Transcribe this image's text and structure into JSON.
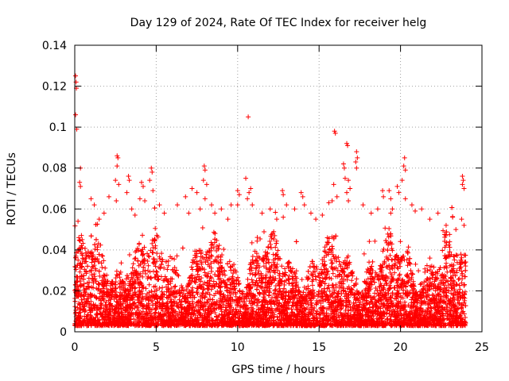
{
  "chart_data": {
    "type": "scatter",
    "title": "Day 129 of 2024, Rate Of TEC Index for receiver helg",
    "xlabel": "GPS time / hours",
    "ylabel": "ROTI / TECUs",
    "xlim": [
      0,
      25
    ],
    "ylim": [
      0,
      0.14
    ],
    "x_ticks": [
      0,
      5,
      10,
      15,
      20,
      25
    ],
    "y_ticks": [
      0,
      0.02,
      0.04,
      0.06,
      0.08,
      0.1,
      0.12,
      0.14
    ],
    "x_tick_labels": [
      "0",
      "5",
      "10",
      "15",
      "20",
      "25"
    ],
    "y_tick_labels": [
      "0",
      "0.02",
      "0.04",
      "0.06",
      "0.08",
      "0.1",
      "0.12",
      "0.14"
    ],
    "grid": true,
    "marker": "+",
    "color": "#ff0000",
    "series": [
      {
        "points": [
          [
            0.05,
            0.125
          ],
          [
            0.08,
            0.122
          ],
          [
            0.1,
            0.119
          ],
          [
            0.05,
            0.106
          ],
          [
            0.12,
            0.099
          ],
          [
            0.35,
            0.08
          ],
          [
            0.3,
            0.073
          ],
          [
            0.35,
            0.071
          ],
          [
            0.2,
            0.054
          ],
          [
            0.25,
            0.046
          ],
          [
            1.0,
            0.065
          ],
          [
            1.2,
            0.062
          ],
          [
            1.5,
            0.055
          ],
          [
            1.8,
            0.058
          ],
          [
            2.1,
            0.066
          ],
          [
            2.6,
            0.086
          ],
          [
            2.65,
            0.085
          ],
          [
            2.6,
            0.081
          ],
          [
            2.5,
            0.074
          ],
          [
            2.7,
            0.072
          ],
          [
            2.55,
            0.064
          ],
          [
            3.3,
            0.076
          ],
          [
            3.35,
            0.074
          ],
          [
            3.2,
            0.068
          ],
          [
            3.5,
            0.06
          ],
          [
            3.7,
            0.057
          ],
          [
            4.1,
            0.073
          ],
          [
            4.2,
            0.071
          ],
          [
            4.0,
            0.065
          ],
          [
            4.3,
            0.064
          ],
          [
            4.7,
            0.08
          ],
          [
            4.75,
            0.078
          ],
          [
            4.6,
            0.074
          ],
          [
            4.8,
            0.069
          ],
          [
            5.2,
            0.062
          ],
          [
            5.5,
            0.058
          ],
          [
            6.3,
            0.062
          ],
          [
            6.8,
            0.066
          ],
          [
            7.0,
            0.058
          ],
          [
            7.2,
            0.07
          ],
          [
            7.5,
            0.068
          ],
          [
            7.7,
            0.06
          ],
          [
            7.95,
            0.081
          ],
          [
            8.0,
            0.079
          ],
          [
            7.9,
            0.074
          ],
          [
            8.1,
            0.072
          ],
          [
            8.0,
            0.065
          ],
          [
            8.4,
            0.062
          ],
          [
            8.6,
            0.058
          ],
          [
            9.0,
            0.06
          ],
          [
            9.4,
            0.055
          ],
          [
            9.6,
            0.062
          ],
          [
            10.0,
            0.069
          ],
          [
            10.1,
            0.067
          ],
          [
            10.0,
            0.062
          ],
          [
            10.65,
            0.105
          ],
          [
            10.5,
            0.075
          ],
          [
            10.8,
            0.07
          ],
          [
            10.7,
            0.068
          ],
          [
            10.6,
            0.065
          ],
          [
            10.9,
            0.062
          ],
          [
            11.5,
            0.058
          ],
          [
            12.0,
            0.06
          ],
          [
            12.4,
            0.055
          ],
          [
            12.8,
            0.056
          ],
          [
            12.75,
            0.069
          ],
          [
            12.8,
            0.067
          ],
          [
            13.0,
            0.062
          ],
          [
            13.5,
            0.06
          ],
          [
            13.9,
            0.068
          ],
          [
            14.0,
            0.066
          ],
          [
            14.1,
            0.062
          ],
          [
            14.5,
            0.058
          ],
          [
            14.8,
            0.055
          ],
          [
            15.2,
            0.057
          ],
          [
            15.6,
            0.063
          ],
          [
            15.95,
            0.098
          ],
          [
            16.0,
            0.097
          ],
          [
            15.9,
            0.072
          ],
          [
            16.1,
            0.066
          ],
          [
            15.8,
            0.064
          ],
          [
            16.5,
            0.082
          ],
          [
            16.55,
            0.08
          ],
          [
            16.6,
            0.075
          ],
          [
            16.7,
            0.092
          ],
          [
            16.75,
            0.091
          ],
          [
            16.8,
            0.074
          ],
          [
            16.9,
            0.07
          ],
          [
            16.7,
            0.068
          ],
          [
            16.8,
            0.064
          ],
          [
            17.3,
            0.088
          ],
          [
            17.35,
            0.085
          ],
          [
            17.25,
            0.083
          ],
          [
            17.3,
            0.08
          ],
          [
            17.7,
            0.062
          ],
          [
            18.2,
            0.058
          ],
          [
            18.6,
            0.06
          ],
          [
            18.9,
            0.069
          ],
          [
            18.95,
            0.066
          ],
          [
            19.3,
            0.069
          ],
          [
            19.4,
            0.065
          ],
          [
            19.5,
            0.06
          ],
          [
            19.4,
            0.058
          ],
          [
            19.8,
            0.071
          ],
          [
            19.9,
            0.068
          ],
          [
            20.25,
            0.085
          ],
          [
            20.2,
            0.081
          ],
          [
            20.3,
            0.079
          ],
          [
            20.1,
            0.074
          ],
          [
            20.3,
            0.065
          ],
          [
            20.7,
            0.062
          ],
          [
            20.9,
            0.059
          ],
          [
            21.3,
            0.06
          ],
          [
            21.8,
            0.055
          ],
          [
            22.3,
            0.058
          ],
          [
            22.8,
            0.052
          ],
          [
            23.2,
            0.056
          ],
          [
            23.4,
            0.05
          ],
          [
            23.8,
            0.076
          ],
          [
            23.85,
            0.074
          ],
          [
            23.8,
            0.072
          ],
          [
            23.9,
            0.07
          ],
          [
            23.75,
            0.055
          ],
          [
            23.9,
            0.052
          ]
        ]
      }
    ]
  }
}
